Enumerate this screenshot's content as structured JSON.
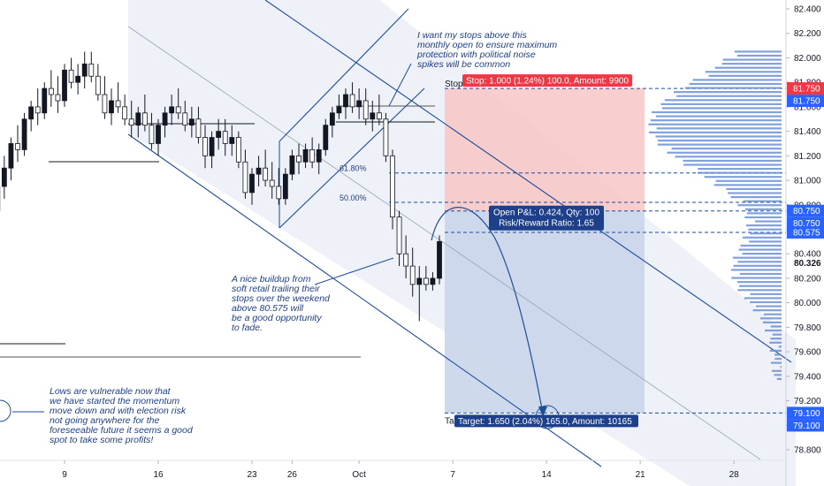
{
  "chart_data": {
    "type": "candlestick",
    "instrument_quote_current": "80.326",
    "y_axis": {
      "ylim": [
        78.8,
        82.5
      ],
      "tick_labels": [
        "82.400",
        "82.200",
        "82.000",
        "81.800",
        "81.750",
        "81.600",
        "81.400",
        "81.200",
        "81.000",
        "80.800",
        "80.750",
        "80.600",
        "80.575",
        "80.400",
        "80.326",
        "80.200",
        "80.000",
        "79.800",
        "79.600",
        "79.400",
        "79.200",
        "79.100",
        "79.000",
        "78.800"
      ],
      "tick_values": [
        82.4,
        82.2,
        82.0,
        81.8,
        81.75,
        81.6,
        81.4,
        81.2,
        81.0,
        80.8,
        80.75,
        80.6,
        80.575,
        80.4,
        80.326,
        80.2,
        80.0,
        79.8,
        79.6,
        79.4,
        79.2,
        79.1,
        79.0,
        78.8
      ],
      "highlight_labels": [
        {
          "value": 81.75,
          "text": "81.750",
          "color": "#f23645"
        },
        {
          "value": 81.75,
          "text": "81.750",
          "color": "#2962ff",
          "offset": 1
        },
        {
          "value": 80.75,
          "text": "80.750",
          "color": "#2962ff"
        },
        {
          "value": 80.75,
          "text": "80.750",
          "color": "#2962ff",
          "offset": 1
        },
        {
          "value": 80.575,
          "text": "80.575",
          "color": "#2962ff"
        },
        {
          "value": 79.1,
          "text": "79.100",
          "color": "#2962ff"
        },
        {
          "value": 79.1,
          "text": "79.100",
          "color": "#2962ff",
          "offset": 1
        }
      ]
    },
    "x_axis": {
      "tick_labels": [
        "9",
        "16",
        "23",
        "26",
        "Oct",
        "7",
        "14",
        "21",
        "28"
      ],
      "tick_days": [
        9,
        16,
        23,
        26,
        31,
        38,
        45,
        52,
        59
      ]
    },
    "candles": [
      {
        "d": 1.0,
        "o": 79.5,
        "h": 79.7,
        "l": 79.35,
        "c": 79.6
      },
      {
        "d": 1.5,
        "o": 79.6,
        "h": 79.8,
        "l": 79.45,
        "c": 79.55
      },
      {
        "d": 2.0,
        "o": 79.55,
        "h": 79.9,
        "l": 79.5,
        "c": 79.85
      },
      {
        "d": 2.5,
        "o": 79.85,
        "h": 80.3,
        "l": 79.8,
        "c": 80.25
      },
      {
        "d": 3.0,
        "o": 80.25,
        "h": 80.5,
        "l": 80.1,
        "c": 80.4
      },
      {
        "d": 3.5,
        "o": 80.4,
        "h": 80.8,
        "l": 80.35,
        "c": 80.75
      },
      {
        "d": 4.0,
        "o": 80.75,
        "h": 81.0,
        "l": 80.6,
        "c": 80.95
      },
      {
        "d": 4.5,
        "o": 80.95,
        "h": 81.2,
        "l": 80.85,
        "c": 81.1
      },
      {
        "d": 5.0,
        "o": 81.1,
        "h": 81.35,
        "l": 81.0,
        "c": 81.3
      },
      {
        "d": 5.5,
        "o": 81.3,
        "h": 81.45,
        "l": 81.15,
        "c": 81.25
      },
      {
        "d": 6.0,
        "o": 81.25,
        "h": 81.55,
        "l": 81.2,
        "c": 81.5
      },
      {
        "d": 6.5,
        "o": 81.5,
        "h": 81.65,
        "l": 81.4,
        "c": 81.6
      },
      {
        "d": 7.0,
        "o": 81.6,
        "h": 81.75,
        "l": 81.45,
        "c": 81.55
      },
      {
        "d": 7.5,
        "o": 81.55,
        "h": 81.8,
        "l": 81.5,
        "c": 81.75
      },
      {
        "d": 8.0,
        "o": 81.75,
        "h": 81.9,
        "l": 81.6,
        "c": 81.7
      },
      {
        "d": 8.5,
        "o": 81.7,
        "h": 81.85,
        "l": 81.55,
        "c": 81.65
      },
      {
        "d": 9.0,
        "o": 81.65,
        "h": 81.95,
        "l": 81.6,
        "c": 81.9
      },
      {
        "d": 9.5,
        "o": 81.9,
        "h": 82.0,
        "l": 81.75,
        "c": 81.8
      },
      {
        "d": 10.0,
        "o": 81.8,
        "h": 81.95,
        "l": 81.7,
        "c": 81.85
      },
      {
        "d": 10.5,
        "o": 81.85,
        "h": 82.05,
        "l": 81.75,
        "c": 81.95
      },
      {
        "d": 11.0,
        "o": 81.95,
        "h": 82.05,
        "l": 81.8,
        "c": 81.85
      },
      {
        "d": 11.5,
        "o": 81.85,
        "h": 81.95,
        "l": 81.65,
        "c": 81.7
      },
      {
        "d": 12.0,
        "o": 81.7,
        "h": 81.85,
        "l": 81.5,
        "c": 81.55
      },
      {
        "d": 12.5,
        "o": 81.55,
        "h": 81.75,
        "l": 81.45,
        "c": 81.65
      },
      {
        "d": 13.0,
        "o": 81.65,
        "h": 81.8,
        "l": 81.55,
        "c": 81.6
      },
      {
        "d": 13.5,
        "o": 81.6,
        "h": 81.7,
        "l": 81.45,
        "c": 81.5
      },
      {
        "d": 14.0,
        "o": 81.5,
        "h": 81.65,
        "l": 81.35,
        "c": 81.45
      },
      {
        "d": 14.5,
        "o": 81.45,
        "h": 81.6,
        "l": 81.35,
        "c": 81.55
      },
      {
        "d": 15.0,
        "o": 81.55,
        "h": 81.7,
        "l": 81.4,
        "c": 81.45
      },
      {
        "d": 15.5,
        "o": 81.45,
        "h": 81.55,
        "l": 81.25,
        "c": 81.3
      },
      {
        "d": 16.0,
        "o": 81.3,
        "h": 81.5,
        "l": 81.2,
        "c": 81.45
      },
      {
        "d": 16.5,
        "o": 81.45,
        "h": 81.6,
        "l": 81.35,
        "c": 81.55
      },
      {
        "d": 17.0,
        "o": 81.55,
        "h": 81.7,
        "l": 81.45,
        "c": 81.6
      },
      {
        "d": 17.5,
        "o": 81.6,
        "h": 81.75,
        "l": 81.5,
        "c": 81.55
      },
      {
        "d": 18.0,
        "o": 81.55,
        "h": 81.65,
        "l": 81.4,
        "c": 81.45
      },
      {
        "d": 18.5,
        "o": 81.45,
        "h": 81.6,
        "l": 81.35,
        "c": 81.5
      },
      {
        "d": 19.0,
        "o": 81.5,
        "h": 81.6,
        "l": 81.3,
        "c": 81.35
      },
      {
        "d": 19.5,
        "o": 81.35,
        "h": 81.45,
        "l": 81.1,
        "c": 81.2
      },
      {
        "d": 20.0,
        "o": 81.2,
        "h": 81.4,
        "l": 81.1,
        "c": 81.35
      },
      {
        "d": 20.5,
        "o": 81.35,
        "h": 81.5,
        "l": 81.25,
        "c": 81.4
      },
      {
        "d": 21.0,
        "o": 81.4,
        "h": 81.5,
        "l": 81.2,
        "c": 81.3
      },
      {
        "d": 21.5,
        "o": 81.3,
        "h": 81.45,
        "l": 81.2,
        "c": 81.35
      },
      {
        "d": 22.0,
        "o": 81.35,
        "h": 81.4,
        "l": 81.1,
        "c": 81.15
      },
      {
        "d": 22.5,
        "o": 81.15,
        "h": 81.25,
        "l": 80.85,
        "c": 80.9
      },
      {
        "d": 23.0,
        "o": 80.9,
        "h": 81.1,
        "l": 80.8,
        "c": 81.05
      },
      {
        "d": 23.5,
        "o": 81.05,
        "h": 81.2,
        "l": 80.95,
        "c": 81.1
      },
      {
        "d": 24.0,
        "o": 81.1,
        "h": 81.25,
        "l": 80.95,
        "c": 81.0
      },
      {
        "d": 24.5,
        "o": 81.0,
        "h": 81.15,
        "l": 80.85,
        "c": 80.95
      },
      {
        "d": 25.0,
        "o": 80.95,
        "h": 81.1,
        "l": 80.8,
        "c": 80.85
      },
      {
        "d": 25.5,
        "o": 80.85,
        "h": 81.1,
        "l": 80.8,
        "c": 81.05
      },
      {
        "d": 26.0,
        "o": 81.05,
        "h": 81.25,
        "l": 81.0,
        "c": 81.2
      },
      {
        "d": 26.5,
        "o": 81.2,
        "h": 81.3,
        "l": 81.05,
        "c": 81.15
      },
      {
        "d": 27.0,
        "o": 81.15,
        "h": 81.3,
        "l": 81.1,
        "c": 81.25
      },
      {
        "d": 27.5,
        "o": 81.25,
        "h": 81.35,
        "l": 81.1,
        "c": 81.15
      },
      {
        "d": 28.0,
        "o": 81.15,
        "h": 81.3,
        "l": 81.05,
        "c": 81.25
      },
      {
        "d": 28.5,
        "o": 81.25,
        "h": 81.5,
        "l": 81.2,
        "c": 81.45
      },
      {
        "d": 29.0,
        "o": 81.45,
        "h": 81.6,
        "l": 81.35,
        "c": 81.55
      },
      {
        "d": 29.5,
        "o": 81.55,
        "h": 81.7,
        "l": 81.5,
        "c": 81.6
      },
      {
        "d": 30.0,
        "o": 81.6,
        "h": 81.75,
        "l": 81.5,
        "c": 81.7
      },
      {
        "d": 30.5,
        "o": 81.7,
        "h": 81.8,
        "l": 81.55,
        "c": 81.6
      },
      {
        "d": 31.0,
        "o": 81.6,
        "h": 81.75,
        "l": 81.5,
        "c": 81.65
      },
      {
        "d": 31.5,
        "o": 81.65,
        "h": 81.75,
        "l": 81.45,
        "c": 81.5
      },
      {
        "d": 32.0,
        "o": 81.5,
        "h": 81.65,
        "l": 81.4,
        "c": 81.55
      },
      {
        "d": 32.5,
        "o": 81.55,
        "h": 81.7,
        "l": 81.45,
        "c": 81.5
      },
      {
        "d": 33.0,
        "o": 81.5,
        "h": 81.55,
        "l": 81.15,
        "c": 81.2
      },
      {
        "d": 33.5,
        "o": 81.2,
        "h": 81.25,
        "l": 80.6,
        "c": 80.7
      },
      {
        "d": 34.0,
        "o": 80.7,
        "h": 80.75,
        "l": 80.3,
        "c": 80.4
      },
      {
        "d": 34.5,
        "o": 80.4,
        "h": 80.55,
        "l": 80.2,
        "c": 80.3
      },
      {
        "d": 35.0,
        "o": 80.3,
        "h": 80.45,
        "l": 80.05,
        "c": 80.15
      },
      {
        "d": 35.5,
        "o": 80.15,
        "h": 80.3,
        "l": 79.85,
        "c": 80.2
      },
      {
        "d": 36.0,
        "o": 80.2,
        "h": 80.3,
        "l": 80.1,
        "c": 80.15
      },
      {
        "d": 36.5,
        "o": 80.15,
        "h": 80.25,
        "l": 80.1,
        "c": 80.2
      },
      {
        "d": 37.0,
        "o": 80.2,
        "h": 80.55,
        "l": 80.15,
        "c": 80.5
      }
    ],
    "trade": {
      "stop_price": 81.75,
      "entry_price": 80.75,
      "target_price": 79.1,
      "stop_label": "Stop: 1.000 (1.24%) 100.0, Amount: 9900",
      "target_label": "Target: 1.650 (2.04%) 165.0, Amount: 10165",
      "pnl_line1": "Open P&L: 0.424, Qty: 100",
      "pnl_line2": "Risk/Reward Ratio: 1.65",
      "stop_prefix": "Stop",
      "target_prefix": "Ta"
    },
    "fib": [
      {
        "label": "61.80%",
        "price": 81.06
      },
      {
        "label": "50.00%",
        "price": 80.82
      }
    ],
    "notes": {
      "top": [
        "I want my stops above this",
        "monthly open to ensure maximum",
        "protection with political noise",
        "spikes will be common"
      ],
      "middle": [
        "A nice buildup from",
        "soft retail trailing their",
        "stops over the weekend",
        "above 80.575 will",
        "be a good opportunity",
        "to fade."
      ],
      "bottom": [
        "Lows are vulnerable now that",
        "we have started the momentum",
        "move down and with election risk",
        "not going anywhere for the",
        "foreseeable future it seems a good",
        "spot to take some profits!"
      ]
    },
    "colors": {
      "up": "#131722",
      "down": "#131722",
      "channel": "#1e4d9b",
      "stop_zone": "#f7c5c5",
      "target_zone": "#c9d5ea",
      "tag_red": "#f23645",
      "tag_blue": "#2962ff",
      "box_navy": "#1e3f8a",
      "profile": "#6b8fd6"
    }
  }
}
